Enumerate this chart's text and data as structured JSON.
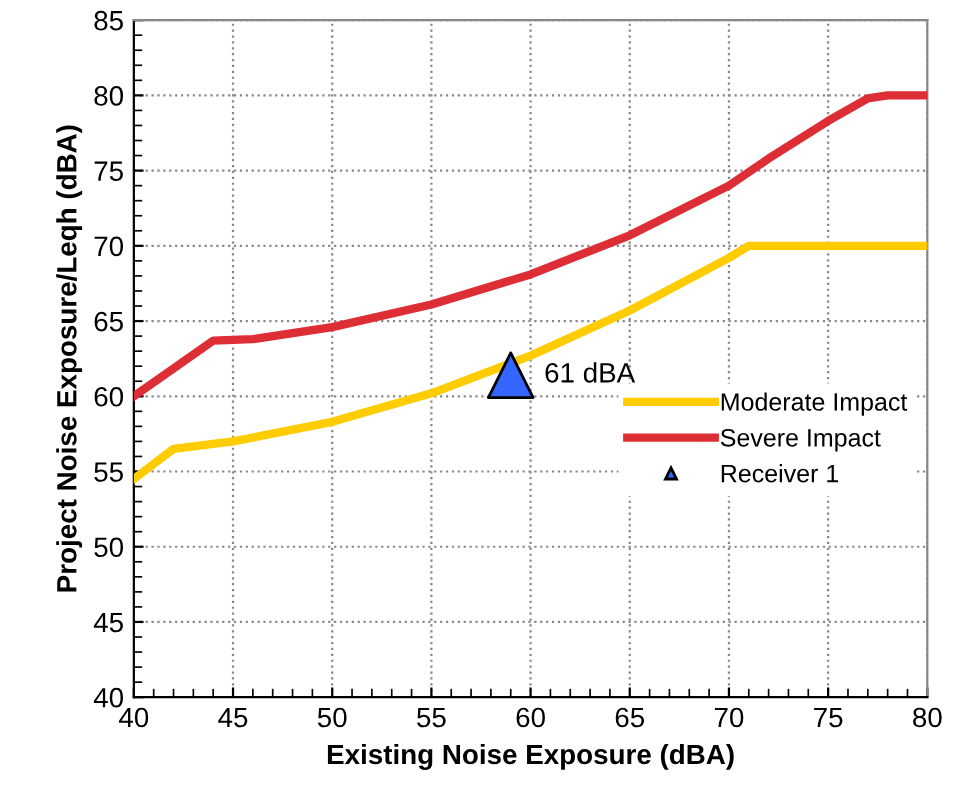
{
  "chart_data": {
    "type": "line",
    "xlabel": "Existing Noise Exposure (dBA)",
    "ylabel": "Project Noise Exposure/Leqh (dBA)",
    "xlim": [
      40,
      80
    ],
    "xticks": [
      40,
      45,
      50,
      55,
      60,
      65,
      70,
      75,
      80
    ],
    "ylim": [
      40,
      85
    ],
    "yticks": [
      40,
      45,
      50,
      55,
      60,
      65,
      70,
      75,
      80,
      85
    ],
    "grid": true,
    "legend": "right",
    "marker": "none",
    "line_style": "solid",
    "series": [
      {
        "name": "Moderate Impact",
        "color": "#ffcc00",
        "x": [
          40,
          42,
          45,
          50,
          55,
          60,
          65,
          70,
          71,
          72,
          80
        ],
        "values": [
          54.5,
          56.5,
          57,
          58.3,
          60.2,
          62.7,
          65.7,
          69.2,
          70,
          70,
          70
        ]
      },
      {
        "name": "Severe Impact",
        "color": "#dd2e35",
        "x": [
          40,
          44,
          46,
          50,
          55,
          60,
          65,
          70,
          72,
          75,
          77,
          78,
          80
        ],
        "values": [
          60,
          63.7,
          63.8,
          64.6,
          66.1,
          68.1,
          70.7,
          74,
          75.8,
          78.3,
          79.8,
          80,
          80
        ]
      },
      {
        "name": "Receiver 1",
        "type": "scatter",
        "marker": "triangle",
        "color": "#3366ff",
        "x": [
          59
        ],
        "values": [
          61.4
        ]
      }
    ],
    "annotations": [
      {
        "text": "61 dBA",
        "x": 59,
        "y": 61.4
      }
    ]
  }
}
